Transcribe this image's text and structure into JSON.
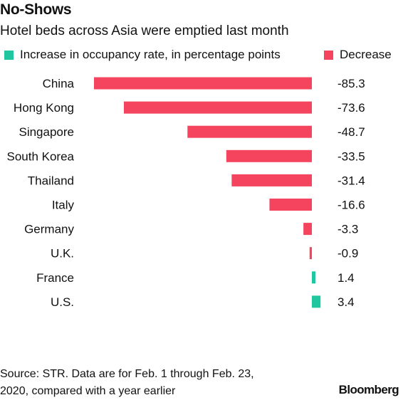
{
  "title": "No-Shows",
  "subtitle": "Hotel beds across Asia were emptied last month",
  "legend": {
    "increase": {
      "label": "Increase in occupancy rate, in percentage points",
      "color": "#1fc6a0"
    },
    "decrease": {
      "label": "Decrease",
      "color": "#f4445e"
    }
  },
  "source": {
    "line1": "Source: STR. Data are for Feb. 1 through Feb. 23,",
    "line2": "2020, compared with a year earlier"
  },
  "brand": "Bloomberg",
  "chart_data": {
    "type": "bar",
    "orientation": "horizontal",
    "categories": [
      "China",
      "Hong Kong",
      "Singapore",
      "South Korea",
      "Thailand",
      "Italy",
      "Germany",
      "U.K.",
      "France",
      "U.S."
    ],
    "values": [
      -85.3,
      -73.6,
      -48.7,
      -33.5,
      -31.4,
      -16.6,
      -3.3,
      -0.9,
      1.4,
      3.4
    ],
    "value_labels": [
      "-85.3",
      "-73.6",
      "-48.7",
      "-33.5",
      "-31.4",
      "-16.6",
      "-3.3",
      "-0.9",
      "1.4",
      "3.4"
    ],
    "positive_color": "#1fc6a0",
    "negative_color": "#f4445e",
    "title": "No-Shows",
    "xlabel": "",
    "ylabel": "",
    "xlim": [
      -86,
      4
    ],
    "grid": false,
    "legend_position": "top"
  }
}
